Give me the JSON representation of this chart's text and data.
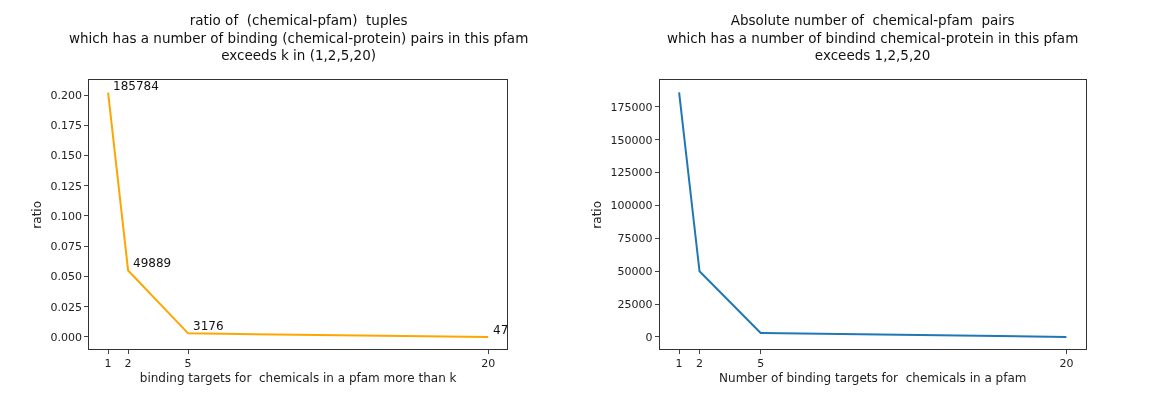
{
  "chart_data": [
    {
      "type": "line",
      "title": "ratio of  (chemical-pfam)  tuples\nwhich has a number of binding (chemical-protein) pairs in this pfam\nexceeds k in (1,2,5,20)",
      "xlabel": "binding targets for  chemicals in a pfam more than k",
      "ylabel": "ratio",
      "x": [
        1,
        2,
        5,
        20
      ],
      "series": [
        {
          "color": "#ffa500",
          "values": [
            0.202,
            0.055,
            0.003,
            0.0
          ]
        }
      ],
      "xlim": [
        0.05,
        20.95
      ],
      "xticks": [
        1,
        2,
        5,
        20
      ],
      "ylim": [
        -0.01,
        0.212
      ],
      "yticks": [
        {
          "value": 0,
          "label": "0.000"
        },
        {
          "value": 0.025,
          "label": "0.025"
        },
        {
          "value": 0.05,
          "label": "0.050"
        },
        {
          "value": 0.075,
          "label": "0.075"
        },
        {
          "value": 0.1,
          "label": "0.100"
        },
        {
          "value": 0.125,
          "label": "0.125"
        },
        {
          "value": 0.15,
          "label": "0.150"
        },
        {
          "value": 0.175,
          "label": "0.175"
        },
        {
          "value": 0.2,
          "label": "0.200"
        }
      ],
      "annotations": [
        {
          "text": "185784",
          "x": 1,
          "y": 0.202
        },
        {
          "text": "49889",
          "x": 2,
          "y": 0.055
        },
        {
          "text": "3176",
          "x": 5,
          "y": 0.003
        },
        {
          "text": "47",
          "x": 20,
          "y": 0.0
        }
      ]
    },
    {
      "type": "line",
      "title": "Absolute number of  chemical-pfam  pairs\nwhich has a number of bindind chemical-protein in this pfam\nexceeds 1,2,5,20",
      "xlabel": "Number of binding targets for  chemicals in a pfam",
      "ylabel": "ratio",
      "x": [
        1,
        2,
        5,
        20
      ],
      "series": [
        {
          "color": "#1f77b4",
          "values": [
            186000,
            50000,
            3000,
            0
          ]
        }
      ],
      "xlim": [
        0.05,
        20.95
      ],
      "xticks": [
        1,
        2,
        5,
        20
      ],
      "ylim": [
        -9240,
        195080
      ],
      "yticks": [
        0,
        25000,
        50000,
        75000,
        100000,
        125000,
        150000,
        175000
      ]
    }
  ]
}
